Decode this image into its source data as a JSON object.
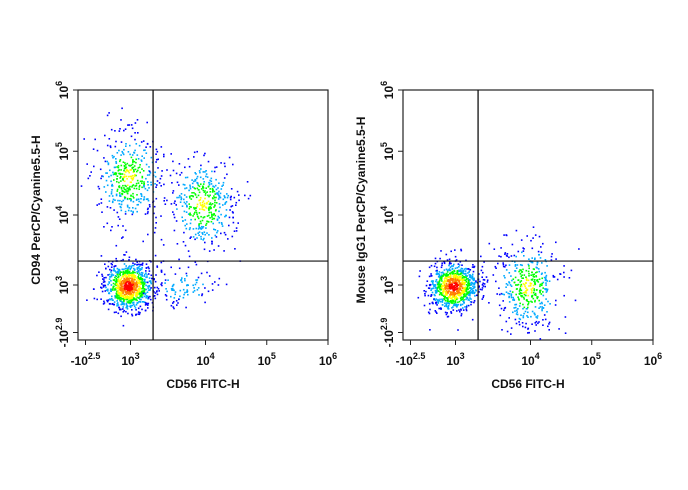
{
  "chart_data": [
    {
      "type": "scatter",
      "subtype": "flow-cytometry-density-dot-plot",
      "xlabel": "CD56 FITC-H",
      "ylabel": "CD94 PerCP/Cyanine5.5-H",
      "xscale": "biexponential",
      "yscale": "biexponential",
      "xlim": [
        -316,
        1000000
      ],
      "ylim": [
        -794,
        1000000
      ],
      "x_ticks": [
        {
          "base": "-10",
          "exp": "2.5",
          "value": -316
        },
        {
          "base": "10",
          "exp": "3",
          "value": 1000
        },
        {
          "base": "10",
          "exp": "4",
          "value": 10000
        },
        {
          "base": "10",
          "exp": "5",
          "value": 100000
        },
        {
          "base": "10",
          "exp": "6",
          "value": 1000000
        }
      ],
      "y_ticks": [
        {
          "base": "-10",
          "exp": "2.9",
          "value": -794
        },
        {
          "base": "10",
          "exp": "3",
          "value": 1000
        },
        {
          "base": "10",
          "exp": "4",
          "value": 10000
        },
        {
          "base": "10",
          "exp": "5",
          "value": 100000
        },
        {
          "base": "10",
          "exp": "6",
          "value": 1000000
        }
      ],
      "quadrant_gate": {
        "x": 2000,
        "y": 2200
      },
      "populations": [
        {
          "label": "CD56- CD94- (dense)",
          "x": 600,
          "y": 900,
          "density": "high"
        },
        {
          "label": "CD56- CD94+",
          "x": 700,
          "y": 40000,
          "density": "medium"
        },
        {
          "label": "CD56+ CD94+",
          "x": 9000,
          "y": 15000,
          "density": "medium"
        },
        {
          "label": "CD56+ CD94-",
          "x": 5000,
          "y": 800,
          "density": "low"
        }
      ],
      "color_scale": [
        "#0000ff",
        "#00aaff",
        "#00ff00",
        "#ffff00",
        "#ff8000",
        "#ff0000"
      ]
    },
    {
      "type": "scatter",
      "subtype": "flow-cytometry-density-dot-plot",
      "xlabel": "CD56 FITC-H",
      "ylabel": "Mouse IgG1 PerCP/Cyanine5.5-H",
      "xscale": "biexponential",
      "yscale": "biexponential",
      "xlim": [
        -316,
        1000000
      ],
      "ylim": [
        -794,
        1000000
      ],
      "x_ticks": [
        {
          "base": "-10",
          "exp": "2.5",
          "value": -316
        },
        {
          "base": "10",
          "exp": "3",
          "value": 1000
        },
        {
          "base": "10",
          "exp": "4",
          "value": 10000
        },
        {
          "base": "10",
          "exp": "5",
          "value": 100000
        },
        {
          "base": "10",
          "exp": "6",
          "value": 1000000
        }
      ],
      "y_ticks": [
        {
          "base": "-10",
          "exp": "2.9",
          "value": -794
        },
        {
          "base": "10",
          "exp": "3",
          "value": 1000
        },
        {
          "base": "10",
          "exp": "4",
          "value": 10000
        },
        {
          "base": "10",
          "exp": "5",
          "value": 100000
        },
        {
          "base": "10",
          "exp": "6",
          "value": 1000000
        }
      ],
      "quadrant_gate": {
        "x": 2000,
        "y": 2200
      },
      "populations": [
        {
          "label": "CD56- (dense)",
          "x": 600,
          "y": 800,
          "density": "high"
        },
        {
          "label": "CD56+",
          "x": 9000,
          "y": 800,
          "density": "medium"
        }
      ],
      "color_scale": [
        "#0000ff",
        "#00aaff",
        "#00ff00",
        "#ffff00",
        "#ff8000",
        "#ff0000"
      ]
    }
  ]
}
